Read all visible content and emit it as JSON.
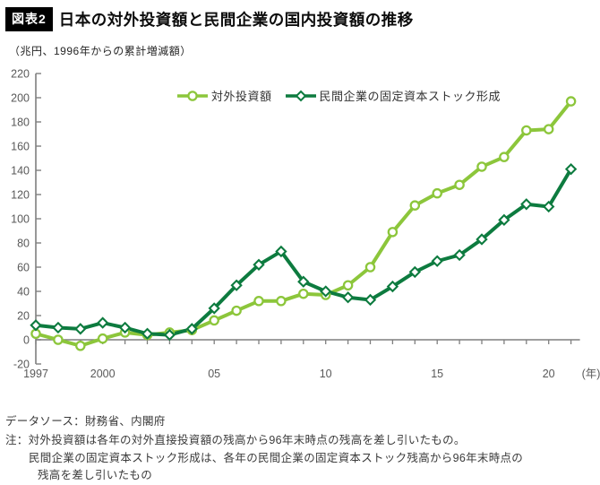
{
  "header": {
    "badge": "図表2",
    "title": "日本の対外投資額と民間企業の国内投資額の推移",
    "subtitle": "（兆円、1996年からの累計増減額）"
  },
  "footer": {
    "source": "データソース：財務省、内閣府",
    "note1": "注：対外投資額は各年の対外直接投資額の残高から96年末時点の残高を差し引いたもの。",
    "note2": "民間企業の固定資本ストック形成は、各年の民間企業の固定資本ストック残高から96年末時点の",
    "note3": "残高を差し引いたもの"
  },
  "chart_data": {
    "type": "line",
    "title": "日本の対外投資額と民間企業の国内投資額の推移",
    "unit_note": "（兆円、1996年からの累計増減額）",
    "x": [
      1997,
      1998,
      1999,
      2000,
      2001,
      2002,
      2003,
      2004,
      2005,
      2006,
      2007,
      2008,
      2009,
      2010,
      2011,
      2012,
      2013,
      2014,
      2015,
      2016,
      2017,
      2018,
      2019,
      2020,
      2021
    ],
    "series": [
      {
        "name": "対外投資額",
        "color": "#8cc63b",
        "marker": "circle",
        "values": [
          5,
          0,
          -5,
          1,
          6,
          4,
          6,
          8,
          16,
          24,
          32,
          32,
          38,
          37,
          45,
          60,
          89,
          111,
          121,
          128,
          143,
          151,
          173,
          174,
          197
        ]
      },
      {
        "name": "民間企業の固定資本ストック形成",
        "color": "#0d7b3f",
        "marker": "diamond",
        "values": [
          12,
          10,
          9,
          14,
          10,
          5,
          4,
          9,
          26,
          45,
          62,
          73,
          48,
          40,
          35,
          33,
          44,
          56,
          65,
          70,
          83,
          99,
          112,
          110,
          141
        ]
      }
    ],
    "ylim": [
      -20,
      220
    ],
    "ytick_step": 20,
    "xticks": [
      {
        "year": 1997,
        "label": "1997"
      },
      {
        "year": 2000,
        "label": "2000"
      },
      {
        "year": 2005,
        "label": "05"
      },
      {
        "year": 2010,
        "label": "10"
      },
      {
        "year": 2015,
        "label": "15"
      },
      {
        "year": 2020,
        "label": "20"
      }
    ],
    "x_unit_label": "(年)",
    "grid": false,
    "legend_position": "top-center",
    "axis_color": "#7f7f7f",
    "tick_label_color": "#595959"
  }
}
